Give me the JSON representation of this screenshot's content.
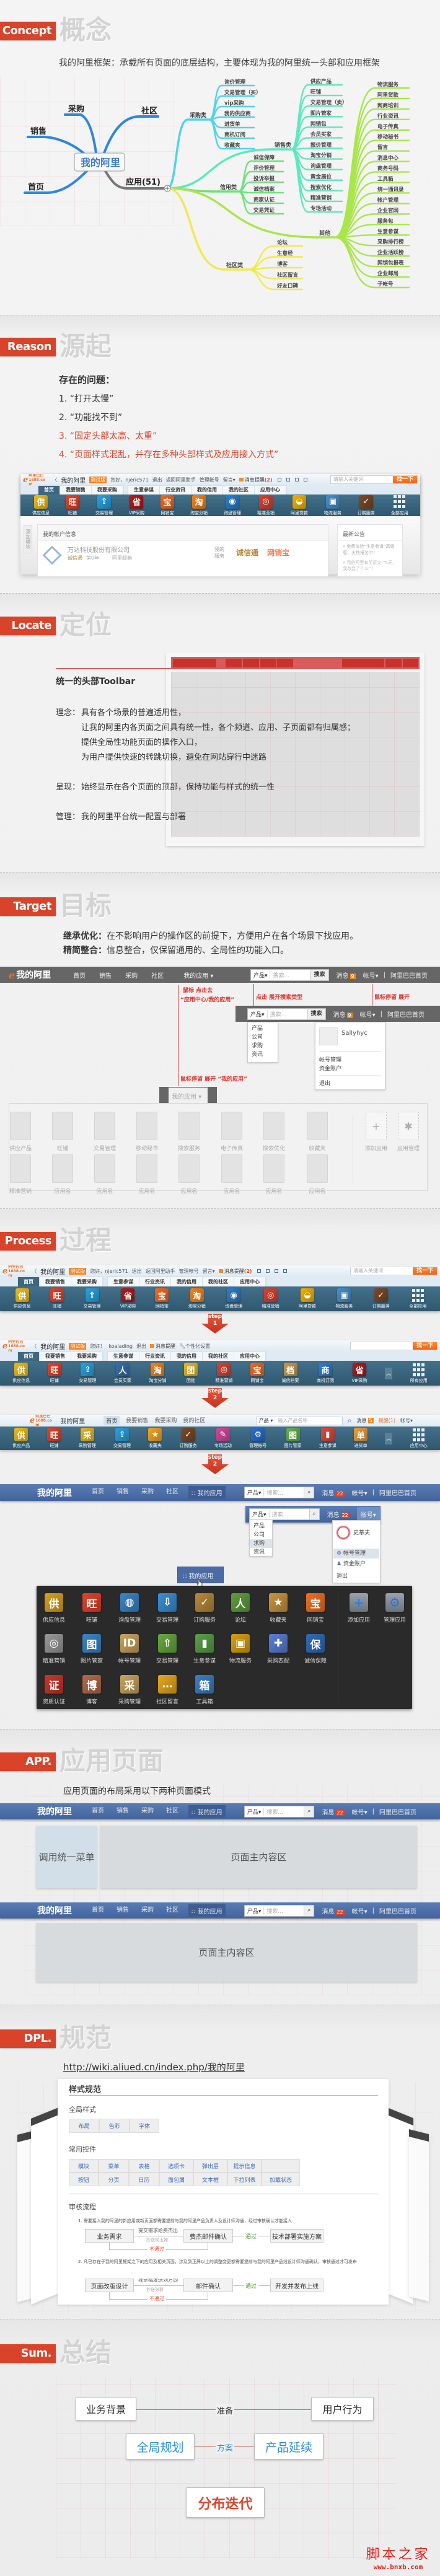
{
  "colors": {
    "accent": "#d8432a",
    "mindmap_top": "#2f86e0",
    "highlight_text": "#d8432a",
    "sum_blue": "#2b8fd8",
    "sum_red": "#e0452e"
  },
  "headers": {
    "concept": {
      "label": "Concept",
      "title": "概念"
    },
    "reason": {
      "label": "Reason",
      "title": "源起"
    },
    "locate": {
      "label": "Locate",
      "title": "定位"
    },
    "target": {
      "label": "Target",
      "title": "目标"
    },
    "process": {
      "label": "Process",
      "title": "过程"
    },
    "app": {
      "label": "APP.",
      "title": "应用页面"
    },
    "dpl": {
      "label": "DPL.",
      "title": "规范"
    },
    "sum": {
      "label": "Sum.",
      "title": "总结"
    }
  },
  "concept": {
    "intro": "我的阿里框架：承载所有页面的底层结构，主要体现为我的阿里统一头部和应用框架",
    "mindmap": {
      "root": "我的阿里",
      "top_branches": [
        "采购",
        "社区",
        "销售",
        "首页"
      ],
      "apps_label": "应用(51)",
      "expand_icon": "plus-icon",
      "branches": [
        {
          "name": "采购类",
          "color": "#4fd3ea",
          "items": [
            "询价管理",
            "交易管理（买）",
            "vip采购",
            "我的供应商",
            "进货单",
            "商机订阅",
            "收藏夹"
          ]
        },
        {
          "name": "销售类",
          "color": "#5ee8c0",
          "items": [
            "供应产品",
            "旺铺",
            "交易管理（卖）",
            "图片管家",
            "网销包",
            "会员买家",
            "报价管理",
            "淘宝分销",
            "询盘管理",
            "黄金展位",
            "搜索优化",
            "精准营销",
            "专场活动"
          ]
        },
        {
          "name": "信用类",
          "color": "#6ee27c",
          "items": [
            "诚信保障",
            "评价管理",
            "投诉举报",
            "诚信档案",
            "商家认证",
            "交易凭证"
          ]
        },
        {
          "name": "其他",
          "color": "#a9e64c",
          "items": [
            "物流服务",
            "阿里贷款",
            "网商培训",
            "行业资讯",
            "电子传真",
            "移动秘书",
            "留言",
            "消息中心",
            "商务号码",
            "工具箱",
            "统一通讯录",
            "帐户管理",
            "企业官网",
            "服务包",
            "生意参谋",
            "采购排行榜",
            "企业活跃榜",
            "网销包报表",
            "企业邮局",
            "子帐号"
          ]
        },
        {
          "name": "社区类",
          "color": "#f2e94e",
          "items": [
            "论坛",
            "生意经",
            "博客",
            "社区留言",
            "好友口碑"
          ]
        }
      ]
    }
  },
  "toolbars": {
    "v1": {
      "logo": "阿里巴巴 1688.com",
      "brand": "我的阿里",
      "badge": "测试版",
      "top_links": [
        "您好，njeric571",
        "退出",
        "返回阿里助手",
        "管理帐号",
        "留言▾"
      ],
      "message": "消息提醒",
      "message_count": "(2)",
      "search_placeholder": "请输入关键词",
      "search_button": "找一下",
      "tabs_main": [
        "首页",
        "我要销售",
        "我要采购"
      ],
      "tabs_sub": [
        "生意参谋",
        "行业资讯",
        "我的信用",
        "我的社区",
        "应用中心"
      ],
      "apps": [
        {
          "label": "供应信息",
          "glyph": "供",
          "color": "#f0bd1c"
        },
        {
          "label": "旺铺",
          "glyph": "旺",
          "color": "#e4432c"
        },
        {
          "label": "交易管理",
          "glyph": "⇪",
          "color": "#2aa3e0"
        },
        {
          "label": "VIP采购",
          "glyph": "省",
          "color": "#b01c1c"
        },
        {
          "label": "网销宝",
          "glyph": "宝",
          "color": "#f26a22"
        },
        {
          "label": "淘宝分销",
          "glyph": "淘",
          "color": "#f7821b"
        },
        {
          "label": "询盘管理",
          "glyph": "◉",
          "color": "#2d7fc8"
        },
        {
          "label": "精准营销",
          "glyph": "◎",
          "color": "#d84232"
        },
        {
          "label": "阿里贷款",
          "glyph": "◒",
          "color": "#f2b400"
        },
        {
          "label": "物流服务",
          "glyph": "▣",
          "color": "#4a90c9"
        },
        {
          "label": "订购服务",
          "glyph": "✓",
          "color": "#7b4a28"
        },
        {
          "label": "全部应用",
          "glyph": "grid",
          "color": ""
        }
      ]
    },
    "v2": {
      "logo": "阿里巴巴 1688.com",
      "brand": "我的阿里",
      "badge": "测试版",
      "top_links": [
        "您好！",
        "koalading",
        "退出"
      ],
      "message": "消息提醒",
      "message_count": "",
      "settings": "个性化设置",
      "search_placeholder": "",
      "search_button": "找一下",
      "tabs_main": [
        "首页",
        "我要销售",
        "我要采购"
      ],
      "tabs_sub": [
        "生意参谋",
        "行业资讯",
        "我的信用",
        "我的社区",
        "应用中心"
      ],
      "apps": [
        {
          "label": "供应信息",
          "glyph": "供",
          "color": "#f0bd1c"
        },
        {
          "label": "旺铺",
          "glyph": "旺",
          "color": "#e4432c"
        },
        {
          "label": "交易管理",
          "glyph": "⇪",
          "color": "#2aa3e0"
        },
        {
          "label": "会员买家",
          "glyph": "人",
          "color": "#3a6fb0"
        },
        {
          "label": "淘宝分销",
          "glyph": "淘",
          "color": "#f7821b"
        },
        {
          "label": "团批",
          "glyph": "团",
          "color": "#e9b72a"
        },
        {
          "label": "精准营销",
          "glyph": "◎",
          "color": "#d84232"
        },
        {
          "label": "网销宝",
          "glyph": "宝",
          "color": "#f26a22"
        },
        {
          "label": "诚信档案",
          "glyph": "档",
          "color": "#c89a50"
        },
        {
          "label": "商机订阅",
          "glyph": "商",
          "color": "#2f7fd0"
        },
        {
          "label": "VIP采购",
          "glyph": "省",
          "color": "#b01c1c"
        },
        {
          "label": "所有应用",
          "glyph": "grid",
          "color": ""
        }
      ]
    },
    "v3": {
      "logo": "阿里巴巴 1688.com",
      "brand": "我的阿里",
      "tabs_main": [
        "首页",
        "我要销售",
        "我要采购",
        "我的社区"
      ],
      "search_category": "产品",
      "search_placeholder": "输入产品名称",
      "message": "消息",
      "message_count": "5",
      "reminder": "提醒(1)",
      "account": "帐号▾",
      "apps": [
        {
          "label": "供应产品",
          "glyph": "供",
          "color": "#f0bd1c"
        },
        {
          "label": "旺铺",
          "glyph": "旺",
          "color": "#e4432c"
        },
        {
          "label": "采购管理",
          "glyph": "采",
          "color": "#e9b72a"
        },
        {
          "label": "交易管理",
          "glyph": "⇪",
          "color": "#2aa3e0"
        },
        {
          "label": "收藏夹",
          "glyph": "★",
          "color": "#f5a623"
        },
        {
          "label": "订购服务",
          "glyph": "✓",
          "color": "#7b4a28"
        },
        {
          "label": "专场活动",
          "glyph": "✎",
          "color": "#d8479a"
        },
        {
          "label": "管理帐号",
          "glyph": "⚙",
          "color": "#2a6fd6"
        },
        {
          "label": "图片管家",
          "glyph": "图",
          "color": "#6ab04c"
        },
        {
          "label": "生意参谋",
          "glyph": "▮",
          "color": "#e04a3a"
        },
        {
          "label": "进货单",
          "glyph": "单",
          "color": "#e8a040"
        },
        {
          "label": "应用中心",
          "glyph": "grid",
          "color": ""
        }
      ]
    }
  },
  "reason": {
    "heading": "存在的问题：",
    "problems": [
      {
        "text": "1. “打开太慢”",
        "highlight": false
      },
      {
        "text": "2. “功能找不到”",
        "highlight": false
      },
      {
        "text": "3. “固定头部太高、太重”",
        "highlight": true
      },
      {
        "text": "4. “页面样式混乱，并存在多种头部样式及应用接入方式”",
        "highlight": true
      }
    ],
    "screenshot": {
      "side_tab": "添加模块",
      "account_title": "我的帐户信息",
      "company": "万达科技股份有限公司",
      "cert": "诚信通",
      "years": "第0年",
      "mail": "阿里邮箱",
      "services_label": "我的服务",
      "services": [
        "诚信通",
        "网销宝"
      ],
      "notice_title": "最新公告",
      "notices": [
        "• 免费体验“生意参谋”高级版，火热报名中！",
        "• 我的阿里有奖征文-“5天，我改变了什么”！"
      ]
    }
  },
  "locate": {
    "title": "统一的头部Toolbar",
    "concept_label": "理念：",
    "concept_lines": [
      "具有各个场景的普遍适用性，",
      "让我的阿里内各页面之间具有统一性，各个频道、应用、子页面都有归属感；",
      "提供全局性功能页面的操作入口，",
      "为用户提供快速的转跳切换，避免在网站穿行中迷路"
    ],
    "display_label": "呈现：",
    "display_text": "始终显示在各个页面的顶部，保持功能与样式的统一性",
    "manage_label": "管理：",
    "manage_text": "我的阿里平台统一配置与部署"
  },
  "newbar_grey": {
    "brand": "我的阿里",
    "nav": [
      "首页",
      "销售",
      "采购",
      "社区"
    ],
    "apps_menu": "我的应用",
    "search_category": "产品▾",
    "search_placeholder": "搜索...",
    "search_button": "搜索",
    "message": "消息",
    "message_count": "9",
    "account": "帐号▾",
    "home_link": "阿里巴巴首页"
  },
  "newbar_blue": {
    "brand": "我的阿里",
    "nav": [
      "首页",
      "销售",
      "采购",
      "社区"
    ],
    "apps_menu": "我的应用",
    "search_category": "产品▾",
    "search_placeholder": "搜索...",
    "search_button": "",
    "message": "消息",
    "message_count": "22",
    "account": "帐号▾",
    "home_link": "阿里巴巴首页"
  },
  "target": {
    "points": [
      {
        "term": "继承优化：",
        "text": "在不影响用户的操作区的前提下，方便用户在各个场景下找应用。"
      },
      {
        "term": "精简整合：",
        "text": "信息整合，仅保留通用的、全局性的功能入口。"
      }
    ],
    "annotations": {
      "apps_click_1": "鼠标 点击去",
      "apps_click_2": "“应用中心/我的应用”",
      "search_click": "点击 展开搜索类型",
      "account_hover": "鼠标停留 展开",
      "apps_hover": "鼠标停留 展开 “我的应用”"
    },
    "search_types": [
      "产品",
      "公司",
      "求购",
      "资讯"
    ],
    "account_menu": {
      "user": "Sallyhyc",
      "items": [
        "帐号管理",
        "资金账户"
      ],
      "logout": "退出"
    },
    "apps_tab": "我的应用",
    "apps": [
      "供应产品",
      "旺铺",
      "交易管理",
      "移动秘书",
      "搜索服务",
      "电子传真",
      "搜索优化",
      "收藏夹",
      "精准营销",
      "应用名",
      "应用名",
      "应用名",
      "应用名",
      "应用名",
      "应用名",
      "应用名"
    ],
    "panel_actions": [
      {
        "label": "添加应用",
        "glyph": "+"
      },
      {
        "label": "应用管理",
        "glyph": "✱"
      }
    ]
  },
  "process": {
    "steps": [
      {
        "word": "step",
        "num": "1"
      },
      {
        "word": "step",
        "num": "2"
      },
      {
        "word": "step",
        "num": "2"
      }
    ],
    "search_types": [
      "产品",
      "公司",
      "求购",
      "资讯"
    ],
    "search_types_hovered": "求购",
    "account_menu": {
      "user": "史蒂夫",
      "items": [
        "帐号管理",
        "资金账户"
      ],
      "logout": "退出"
    },
    "apps_button": "我的应用",
    "apps": [
      {
        "label": "供应信息",
        "glyph": "供",
        "color": "#d9a21c"
      },
      {
        "label": "旺铺",
        "glyph": "旺",
        "color": "#e4432c"
      },
      {
        "label": "询盘管理",
        "glyph": "◍",
        "color": "#3b86c9"
      },
      {
        "label": "交易管理",
        "glyph": "⇩",
        "color": "#3b8fd6"
      },
      {
        "label": "订购服务",
        "glyph": "✓",
        "color": "#b8893a"
      },
      {
        "label": "论坛",
        "glyph": "人",
        "color": "#5f9e3e"
      },
      {
        "label": "收藏夹",
        "glyph": "★",
        "color": "#c9963f"
      },
      {
        "label": "网销宝",
        "glyph": "宝",
        "color": "#f07020"
      },
      {
        "label": "精准营销",
        "glyph": "◎",
        "color": "#9a9a9a"
      },
      {
        "label": "图片管家",
        "glyph": "图",
        "color": "#3b86c9"
      },
      {
        "label": "帐号管理",
        "glyph": "ID",
        "color": "#c9a460"
      },
      {
        "label": "交易管理",
        "glyph": "⇧",
        "color": "#68a840"
      },
      {
        "label": "生意参谋",
        "glyph": "▮",
        "color": "#5aa04a"
      },
      {
        "label": "物流服务",
        "glyph": "▣",
        "color": "#d8a010"
      },
      {
        "label": "采购匹配",
        "glyph": "✚",
        "color": "#5b7fd6"
      },
      {
        "label": "诚信保障",
        "glyph": "保",
        "color": "#2f6cb8"
      },
      {
        "label": "资质认证",
        "glyph": "证",
        "color": "#c9362c"
      },
      {
        "label": "博客",
        "glyph": "博",
        "color": "#b46a4a"
      },
      {
        "label": "采购管理",
        "glyph": "采",
        "color": "#c9a460"
      },
      {
        "label": "社区留言",
        "glyph": "…",
        "color": "#e6a820"
      },
      {
        "label": "工具箱",
        "glyph": "箱",
        "color": "#3b7fc9"
      }
    ],
    "panel_actions": [
      {
        "label": "添加应用",
        "glyph": "+",
        "color": "#2e7fe0"
      },
      {
        "label": "管理应用",
        "glyph": "⚙",
        "color": "#2e6fd0"
      }
    ]
  },
  "app": {
    "intro": "应用页面的布局采用以下两种页面模式",
    "menu_area": "调用统一菜单",
    "main_area": "页面主内容区"
  },
  "dpl": {
    "url": "http://wiki.aliued.cn/index.php/我的阿里",
    "doc_title": "样式规范",
    "global_title": "全局样式",
    "global_items": [
      "布局",
      "色彩",
      "字体"
    ],
    "controls_title": "常用控件",
    "controls_rows": [
      [
        "模块",
        "菜单",
        "表格",
        "选项卡",
        "弹出层",
        "提示信息",
        ""
      ],
      [
        "按钮",
        "分页",
        "日历",
        "面包屑",
        "文本框",
        "下拉列表",
        "加载状态"
      ]
    ],
    "review_title": "审核流程",
    "rule1": "1. 需要接入我的阿里的新应用或新页面都需要提前与我的阿里产品负责人及设计师沟通，经过审核确认才能接入",
    "flow1": {
      "start": "业务需求",
      "send": "提交需求给费杰出",
      "cc": "抄送何玉婵",
      "confirm": "费杰邮件确认",
      "pass": "通过",
      "end": "技术部署实施方案",
      "reject": "不通过"
    },
    "rule2": "2. 凡已存在于我的阿里框架之下的应用及相关页面，涉及到正屏以上的调整变更都需要提前与我的阿里产品线设计师沟通确认，审核通过才可发布",
    "flow2": {
      "start": "页面改版设计",
      "send": "视觉稿发送刘万钧",
      "cc": "抄送张群",
      "confirm": "邮件确认",
      "pass": "通过",
      "end": "开发并发布上线",
      "reject": "不通过"
    }
  },
  "sum": {
    "left_top": "业务背景",
    "right_top": "用户行为",
    "prepare": "准备",
    "left_mid": "全局规划",
    "right_mid": "产品延续",
    "plan": "方案",
    "bottom": "分布迭代"
  },
  "watermark": {
    "name": "脚本之家",
    "site": "www.bnxb.com"
  }
}
